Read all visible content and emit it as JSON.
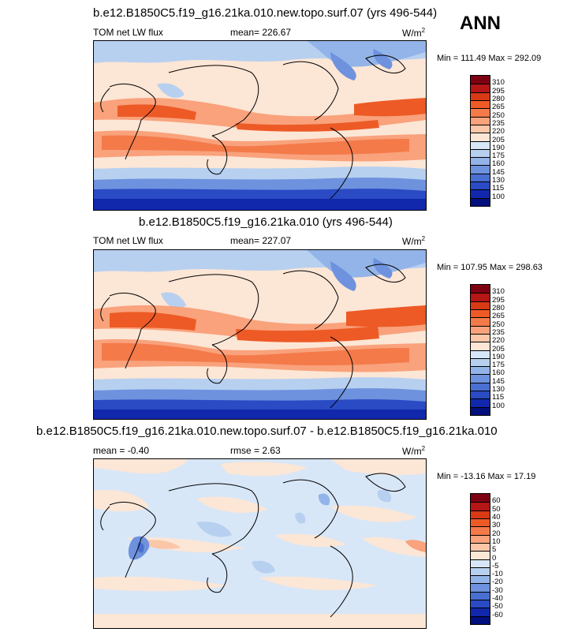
{
  "season": "ANN",
  "units": "W/m",
  "units_sup": "2",
  "panels": [
    {
      "title": "b.e12.B1850C5.f19_g16.21ka.010.new.topo.surf.07 (yrs 496-544)",
      "left_label": "TOM net LW flux",
      "center_label": "mean= 226.67",
      "minmax": "Min = 111.49 Max = 292.09",
      "colorbar": {
        "labels": [
          "310",
          "295",
          "280",
          "265",
          "250",
          "235",
          "220",
          "205",
          "190",
          "175",
          "160",
          "145",
          "130",
          "115",
          "100"
        ],
        "colors": [
          "#7d0012",
          "#b51616",
          "#d73a14",
          "#ed5a26",
          "#f47a4a",
          "#f9a27c",
          "#fbc7a8",
          "#fce6d6",
          "#d8e7f7",
          "#b7d0f0",
          "#93b4e8",
          "#6e92de",
          "#4a6fd2",
          "#2a4bc4",
          "#1128ad",
          "#030f7c"
        ]
      }
    },
    {
      "title": "b.e12.B1850C5.f19_g16.21ka.010 (yrs 496-544)",
      "left_label": "TOM net LW flux",
      "center_label": "mean= 227.07",
      "minmax": "Min = 107.95 Max = 298.63",
      "colorbar": {
        "labels": [
          "310",
          "295",
          "280",
          "265",
          "250",
          "235",
          "220",
          "205",
          "190",
          "175",
          "160",
          "145",
          "130",
          "115",
          "100"
        ],
        "colors": [
          "#7d0012",
          "#b51616",
          "#d73a14",
          "#ed5a26",
          "#f47a4a",
          "#f9a27c",
          "#fbc7a8",
          "#fce6d6",
          "#d8e7f7",
          "#b7d0f0",
          "#93b4e8",
          "#6e92de",
          "#4a6fd2",
          "#2a4bc4",
          "#1128ad",
          "#030f7c"
        ]
      }
    },
    {
      "title": "b.e12.B1850C5.f19_g16.21ka.010.new.topo.surf.07 - b.e12.B1850C5.f19_g16.21ka.010",
      "left_label": "mean =  -0.40",
      "center_label": "rmse =   2.63",
      "minmax": "Min = -13.16 Max =  17.19",
      "colorbar": {
        "labels": [
          "60",
          "50",
          "40",
          "30",
          "20",
          "10",
          "5",
          "0",
          "-5",
          "-10",
          "-20",
          "-30",
          "-40",
          "-50",
          "-60"
        ],
        "colors": [
          "#7d0012",
          "#b51616",
          "#d73a14",
          "#ed5a26",
          "#f47a4a",
          "#f9a27c",
          "#fbc7a8",
          "#fce6d6",
          "#d8e7f7",
          "#b7d0f0",
          "#93b4e8",
          "#6e92de",
          "#4a6fd2",
          "#2a4bc4",
          "#1128ad",
          "#030f7c"
        ]
      }
    }
  ]
}
